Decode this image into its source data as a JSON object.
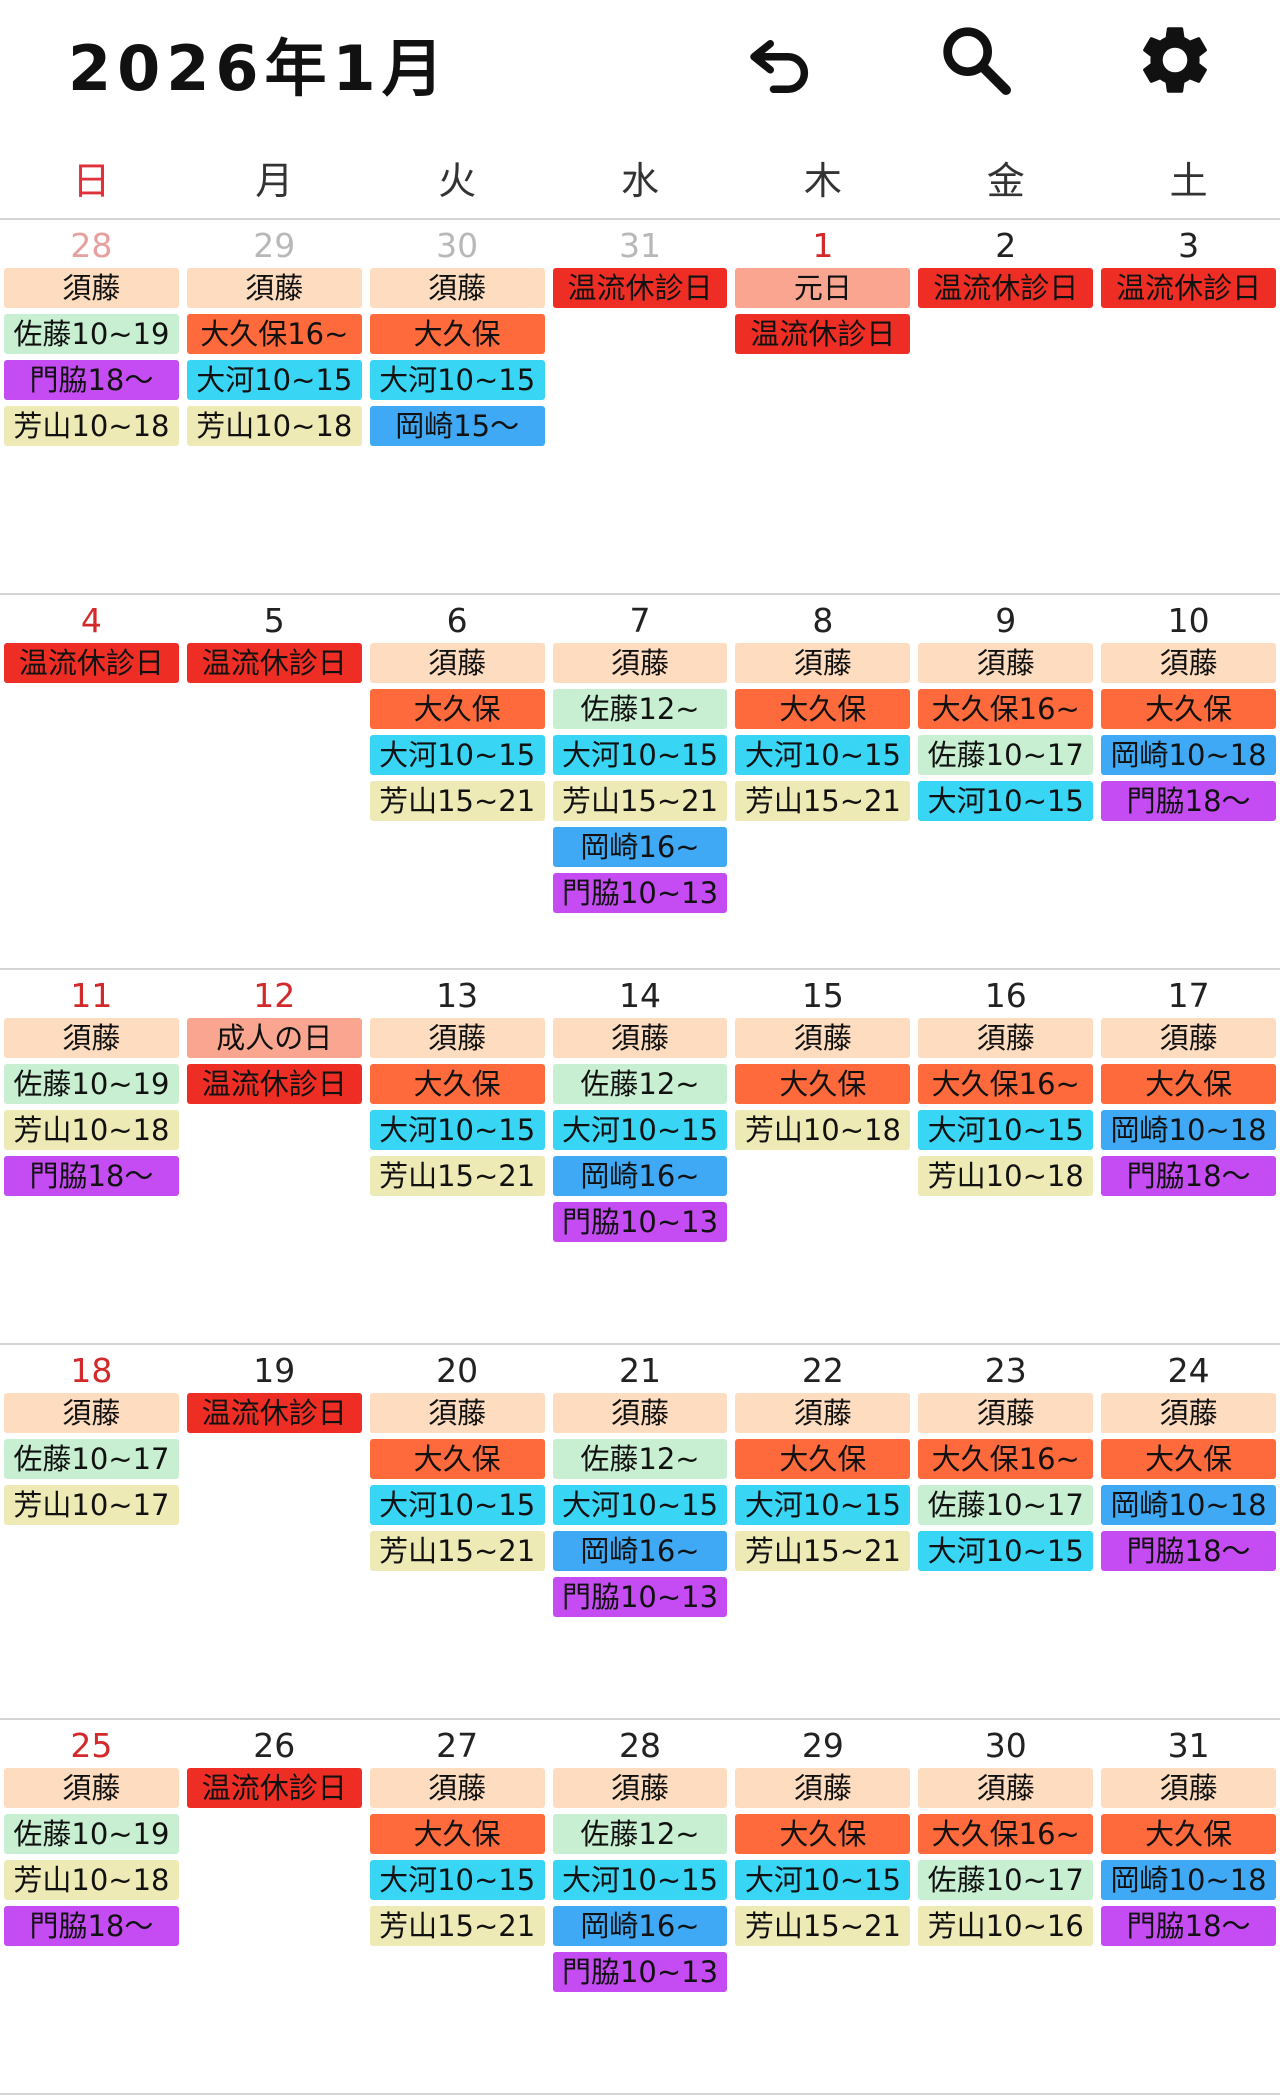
{
  "header": {
    "title": "2026年1月",
    "icons": [
      "undo-icon",
      "search-icon",
      "gear-icon"
    ]
  },
  "weekdays": [
    "日",
    "月",
    "火",
    "水",
    "木",
    "金",
    "土"
  ],
  "colors": {
    "sutou": "#fddcbf",
    "ookubo": "#fe6a3b",
    "ookawa": "#38d5f5",
    "houzan": "#eeeab6",
    "okazaki": "#3fa9f5",
    "kadowaki": "#c54cf3",
    "satou": "#c8efd2",
    "holiday_closed": "#ee2e24",
    "holiday_name": "#faa58f"
  },
  "weeks": [
    [
      {
        "num": "28",
        "tone": "graypink",
        "events": [
          [
            "須藤",
            "sutou"
          ],
          [
            "佐藤10~19",
            "satou"
          ],
          [
            "門脇18〜",
            "kadowaki"
          ],
          [
            "芳山10~18",
            "houzan"
          ]
        ]
      },
      {
        "num": "29",
        "tone": "gray",
        "events": [
          [
            "須藤",
            "sutou"
          ],
          [
            "大久保16~",
            "ookubo"
          ],
          [
            "大河10~15",
            "ookawa"
          ],
          [
            "芳山10~18",
            "houzan"
          ]
        ]
      },
      {
        "num": "30",
        "tone": "gray",
        "events": [
          [
            "須藤",
            "sutou"
          ],
          [
            "大久保",
            "ookubo"
          ],
          [
            "大河10~15",
            "ookawa"
          ],
          [
            "岡崎15〜",
            "okazaki"
          ]
        ]
      },
      {
        "num": "31",
        "tone": "gray",
        "events": [
          [
            "温流休診日",
            "holiday_closed"
          ]
        ]
      },
      {
        "num": "1",
        "tone": "red",
        "events": [
          [
            "元日",
            "holiday_name"
          ],
          [
            "温流休診日",
            "holiday_closed"
          ]
        ]
      },
      {
        "num": "2",
        "tone": "",
        "events": [
          [
            "温流休診日",
            "holiday_closed"
          ]
        ]
      },
      {
        "num": "3",
        "tone": "",
        "events": [
          [
            "温流休診日",
            "holiday_closed"
          ]
        ]
      }
    ],
    [
      {
        "num": "4",
        "tone": "red",
        "events": [
          [
            "温流休診日",
            "holiday_closed"
          ]
        ]
      },
      {
        "num": "5",
        "tone": "",
        "events": [
          [
            "温流休診日",
            "holiday_closed"
          ]
        ]
      },
      {
        "num": "6",
        "tone": "",
        "events": [
          [
            "須藤",
            "sutou"
          ],
          [
            "大久保",
            "ookubo"
          ],
          [
            "大河10~15",
            "ookawa"
          ],
          [
            "芳山15~21",
            "houzan"
          ]
        ]
      },
      {
        "num": "7",
        "tone": "",
        "events": [
          [
            "須藤",
            "sutou"
          ],
          [
            "佐藤12~",
            "satou"
          ],
          [
            "大河10~15",
            "ookawa"
          ],
          [
            "芳山15~21",
            "houzan"
          ],
          [
            "岡崎16~",
            "okazaki"
          ],
          [
            "門脇10~13",
            "kadowaki"
          ]
        ]
      },
      {
        "num": "8",
        "tone": "",
        "events": [
          [
            "須藤",
            "sutou"
          ],
          [
            "大久保",
            "ookubo"
          ],
          [
            "大河10~15",
            "ookawa"
          ],
          [
            "芳山15~21",
            "houzan"
          ]
        ]
      },
      {
        "num": "9",
        "tone": "",
        "events": [
          [
            "須藤",
            "sutou"
          ],
          [
            "大久保16~",
            "ookubo"
          ],
          [
            "佐藤10~17",
            "satou"
          ],
          [
            "大河10~15",
            "ookawa"
          ]
        ]
      },
      {
        "num": "10",
        "tone": "",
        "events": [
          [
            "須藤",
            "sutou"
          ],
          [
            "大久保",
            "ookubo"
          ],
          [
            "岡崎10~18",
            "okazaki"
          ],
          [
            "門脇18〜",
            "kadowaki"
          ]
        ]
      }
    ],
    [
      {
        "num": "11",
        "tone": "red",
        "events": [
          [
            "須藤",
            "sutou"
          ],
          [
            "佐藤10~19",
            "satou"
          ],
          [
            "芳山10~18",
            "houzan"
          ],
          [
            "門脇18〜",
            "kadowaki"
          ]
        ]
      },
      {
        "num": "12",
        "tone": "red",
        "events": [
          [
            "成人の日",
            "holiday_name"
          ],
          [
            "温流休診日",
            "holiday_closed"
          ]
        ]
      },
      {
        "num": "13",
        "tone": "",
        "events": [
          [
            "須藤",
            "sutou"
          ],
          [
            "大久保",
            "ookubo"
          ],
          [
            "大河10~15",
            "ookawa"
          ],
          [
            "芳山15~21",
            "houzan"
          ]
        ]
      },
      {
        "num": "14",
        "tone": "",
        "events": [
          [
            "須藤",
            "sutou"
          ],
          [
            "佐藤12~",
            "satou"
          ],
          [
            "大河10~15",
            "ookawa"
          ],
          [
            "岡崎16~",
            "okazaki"
          ],
          [
            "門脇10~13",
            "kadowaki"
          ]
        ]
      },
      {
        "num": "15",
        "tone": "",
        "events": [
          [
            "須藤",
            "sutou"
          ],
          [
            "大久保",
            "ookubo"
          ],
          [
            "芳山10~18",
            "houzan"
          ]
        ]
      },
      {
        "num": "16",
        "tone": "",
        "events": [
          [
            "須藤",
            "sutou"
          ],
          [
            "大久保16~",
            "ookubo"
          ],
          [
            "大河10~15",
            "ookawa"
          ],
          [
            "芳山10~18",
            "houzan"
          ]
        ]
      },
      {
        "num": "17",
        "tone": "",
        "events": [
          [
            "須藤",
            "sutou"
          ],
          [
            "大久保",
            "ookubo"
          ],
          [
            "岡崎10~18",
            "okazaki"
          ],
          [
            "門脇18〜",
            "kadowaki"
          ]
        ]
      }
    ],
    [
      {
        "num": "18",
        "tone": "red",
        "events": [
          [
            "須藤",
            "sutou"
          ],
          [
            "佐藤10~17",
            "satou"
          ],
          [
            "芳山10~17",
            "houzan"
          ]
        ]
      },
      {
        "num": "19",
        "tone": "",
        "events": [
          [
            "温流休診日",
            "holiday_closed"
          ]
        ]
      },
      {
        "num": "20",
        "tone": "",
        "events": [
          [
            "須藤",
            "sutou"
          ],
          [
            "大久保",
            "ookubo"
          ],
          [
            "大河10~15",
            "ookawa"
          ],
          [
            "芳山15~21",
            "houzan"
          ]
        ]
      },
      {
        "num": "21",
        "tone": "",
        "events": [
          [
            "須藤",
            "sutou"
          ],
          [
            "佐藤12~",
            "satou"
          ],
          [
            "大河10~15",
            "ookawa"
          ],
          [
            "岡崎16~",
            "okazaki"
          ],
          [
            "門脇10~13",
            "kadowaki"
          ]
        ]
      },
      {
        "num": "22",
        "tone": "",
        "events": [
          [
            "須藤",
            "sutou"
          ],
          [
            "大久保",
            "ookubo"
          ],
          [
            "大河10~15",
            "ookawa"
          ],
          [
            "芳山15~21",
            "houzan"
          ]
        ]
      },
      {
        "num": "23",
        "tone": "",
        "events": [
          [
            "須藤",
            "sutou"
          ],
          [
            "大久保16~",
            "ookubo"
          ],
          [
            "佐藤10~17",
            "satou"
          ],
          [
            "大河10~15",
            "ookawa"
          ]
        ]
      },
      {
        "num": "24",
        "tone": "",
        "events": [
          [
            "須藤",
            "sutou"
          ],
          [
            "大久保",
            "ookubo"
          ],
          [
            "岡崎10~18",
            "okazaki"
          ],
          [
            "門脇18〜",
            "kadowaki"
          ]
        ]
      }
    ],
    [
      {
        "num": "25",
        "tone": "red",
        "events": [
          [
            "須藤",
            "sutou"
          ],
          [
            "佐藤10~19",
            "satou"
          ],
          [
            "芳山10~18",
            "houzan"
          ],
          [
            "門脇18〜",
            "kadowaki"
          ]
        ]
      },
      {
        "num": "26",
        "tone": "",
        "events": [
          [
            "温流休診日",
            "holiday_closed"
          ]
        ]
      },
      {
        "num": "27",
        "tone": "",
        "events": [
          [
            "須藤",
            "sutou"
          ],
          [
            "大久保",
            "ookubo"
          ],
          [
            "大河10~15",
            "ookawa"
          ],
          [
            "芳山15~21",
            "houzan"
          ]
        ]
      },
      {
        "num": "28",
        "tone": "",
        "events": [
          [
            "須藤",
            "sutou"
          ],
          [
            "佐藤12~",
            "satou"
          ],
          [
            "大河10~15",
            "ookawa"
          ],
          [
            "岡崎16~",
            "okazaki"
          ],
          [
            "門脇10~13",
            "kadowaki"
          ]
        ]
      },
      {
        "num": "29",
        "tone": "",
        "events": [
          [
            "須藤",
            "sutou"
          ],
          [
            "大久保",
            "ookubo"
          ],
          [
            "大河10~15",
            "ookawa"
          ],
          [
            "芳山15~21",
            "houzan"
          ]
        ]
      },
      {
        "num": "30",
        "tone": "",
        "events": [
          [
            "須藤",
            "sutou"
          ],
          [
            "大久保16~",
            "ookubo"
          ],
          [
            "佐藤10~17",
            "satou"
          ],
          [
            "芳山10~16",
            "houzan"
          ]
        ]
      },
      {
        "num": "31",
        "tone": "",
        "events": [
          [
            "須藤",
            "sutou"
          ],
          [
            "大久保",
            "ookubo"
          ],
          [
            "岡崎10~18",
            "okazaki"
          ],
          [
            "門脇18〜",
            "kadowaki"
          ]
        ]
      }
    ]
  ]
}
